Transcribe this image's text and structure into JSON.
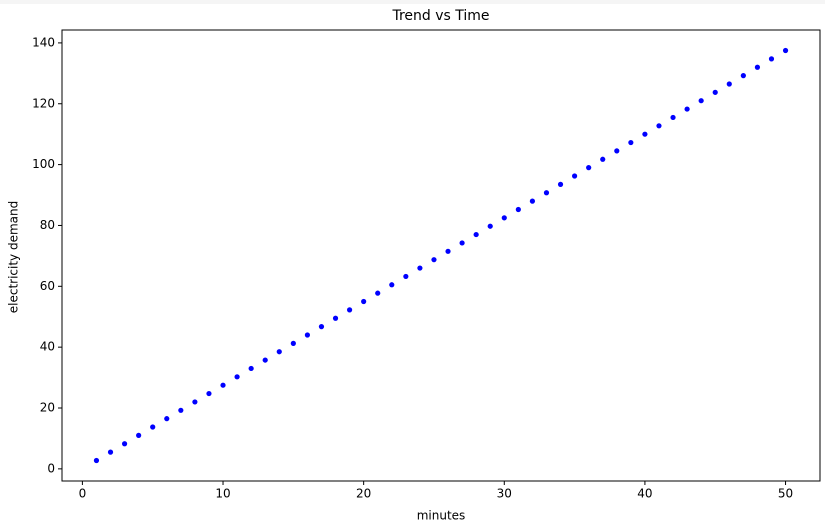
{
  "chart_data": {
    "type": "scatter",
    "title": "Trend vs Time",
    "x_label": "minutes",
    "y_label": "electricity demand",
    "series": [
      {
        "color": "#0000ff",
        "x": [
          1,
          2,
          3,
          4,
          5,
          6,
          7,
          8,
          9,
          10,
          11,
          12,
          13,
          14,
          15,
          16,
          17,
          18,
          19,
          20,
          21,
          22,
          23,
          24,
          25,
          26,
          27,
          28,
          29,
          30,
          31,
          32,
          33,
          34,
          35,
          36,
          37,
          38,
          39,
          40,
          41,
          42,
          43,
          44,
          45,
          46,
          47,
          48,
          49,
          50
        ],
        "values": [
          2.75,
          5.5,
          8.25,
          11,
          13.75,
          16.5,
          19.25,
          22,
          24.75,
          27.5,
          30.25,
          33,
          35.75,
          38.5,
          41.25,
          44,
          46.75,
          49.5,
          52.25,
          55,
          57.75,
          60.5,
          63.25,
          66,
          68.75,
          71.5,
          74.25,
          77,
          79.75,
          82.5,
          85.25,
          88,
          90.75,
          93.5,
          96.25,
          99,
          101.75,
          104.5,
          107.25,
          110,
          112.75,
          115.5,
          118.25,
          121,
          123.75,
          126.5,
          129.25,
          132,
          134.75,
          137.5
        ]
      }
    ],
    "xlim": [
      -1.45,
      52.45
    ],
    "xticks": [
      0,
      10,
      20,
      30,
      40,
      50
    ],
    "ylim": [
      -3.99,
      144.24
    ],
    "yticks": [
      0,
      20,
      40,
      60,
      80,
      100,
      120,
      140
    ]
  }
}
